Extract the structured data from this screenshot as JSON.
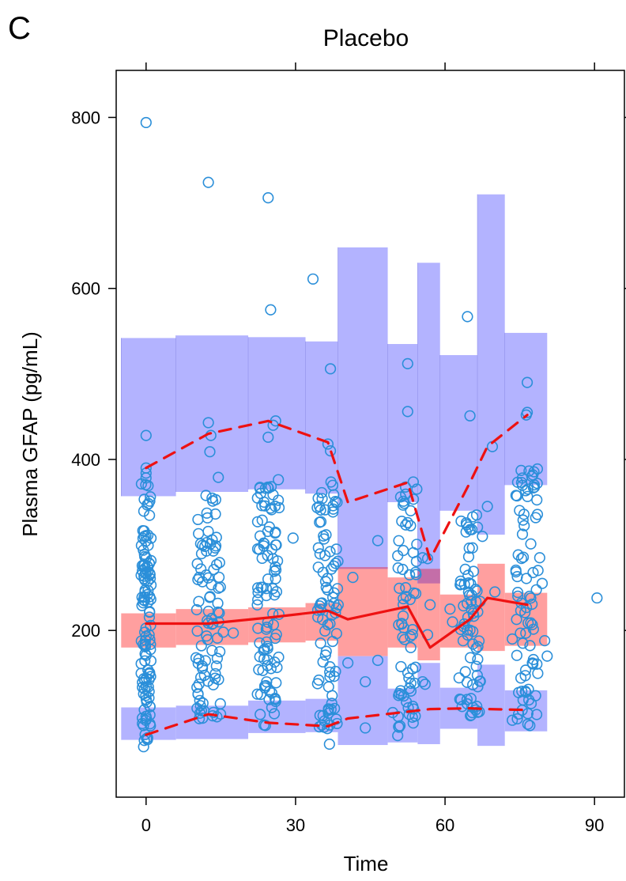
{
  "panel_label": "C",
  "colors": {
    "outer_band": "#b3b3ff",
    "median_band": "#ff9f9f",
    "overlap": "#c46ea8",
    "points": "#2b8fd9",
    "obs_lines": "#ee1111",
    "axis": "#000000"
  },
  "chart_data": {
    "type": "scatter",
    "title": "Placebo",
    "xlabel": "Time",
    "ylabel": "Plasma GFAP (pg/mL)",
    "xlim": [
      -6,
      96
    ],
    "ylim": [
      5,
      855
    ],
    "x_ticks": [
      0,
      30,
      60,
      90
    ],
    "x_tick_labels": [
      "0",
      "30",
      "60",
      "90"
    ],
    "y_ticks": [
      200,
      400,
      600,
      800
    ],
    "y_tick_labels": [
      "200",
      "400",
      "600",
      "800"
    ],
    "grid": false,
    "legend": "none",
    "bins": [
      {
        "x0": -5,
        "x1": 6,
        "hi_lo": 357,
        "hi_hi": 542,
        "med_lo": 180,
        "med_hi": 220,
        "lo_lo": 72,
        "lo_hi": 110
      },
      {
        "x0": 6,
        "x1": 20.5,
        "hi_lo": 362,
        "hi_hi": 545,
        "med_lo": 183,
        "med_hi": 225,
        "lo_lo": 73,
        "lo_hi": 112
      },
      {
        "x0": 20.5,
        "x1": 32,
        "hi_lo": 365,
        "hi_hi": 543,
        "med_lo": 186,
        "med_hi": 227,
        "lo_lo": 80,
        "lo_hi": 118
      },
      {
        "x0": 32,
        "x1": 38.5,
        "hi_lo": 360,
        "hi_hi": 538,
        "med_lo": 188,
        "med_hi": 232,
        "lo_lo": 81,
        "lo_hi": 120
      },
      {
        "x0": 38.5,
        "x1": 48.5,
        "hi_lo": 272,
        "hi_hi": 648,
        "med_lo": 170,
        "med_hi": 274,
        "lo_lo": 66,
        "lo_hi": 170
      },
      {
        "x0": 48.5,
        "x1": 54.5,
        "hi_lo": 350,
        "hi_hi": 535,
        "med_lo": 180,
        "med_hi": 262,
        "lo_lo": 69,
        "lo_hi": 132
      },
      {
        "x0": 54.5,
        "x1": 59,
        "hi_lo": 255,
        "hi_hi": 630,
        "med_lo": 165,
        "med_hi": 272,
        "lo_lo": 67,
        "lo_hi": 162
      },
      {
        "x0": 59,
        "x1": 66.5,
        "hi_lo": 340,
        "hi_hi": 522,
        "med_lo": 180,
        "med_hi": 242,
        "lo_lo": 85,
        "lo_hi": 133
      },
      {
        "x0": 66.5,
        "x1": 72,
        "hi_lo": 312,
        "hi_hi": 710,
        "med_lo": 176,
        "med_hi": 278,
        "lo_lo": 65,
        "lo_hi": 160
      },
      {
        "x0": 72,
        "x1": 80.5,
        "hi_lo": 370,
        "hi_hi": 548,
        "med_lo": 182,
        "med_hi": 244,
        "lo_lo": 82,
        "lo_hi": 130
      }
    ],
    "series": [
      {
        "style": "solid",
        "x": [
          0,
          12.5,
          24.5,
          36.5,
          40.5,
          52.5,
          57,
          65,
          68.5,
          76.5
        ],
        "values": [
          208,
          208,
          215,
          223,
          213,
          228,
          180,
          213,
          238,
          230
        ]
      },
      {
        "style": "dashed",
        "x": [
          0,
          12.5,
          24.5,
          36.5,
          40.5,
          52.5,
          57,
          65,
          68.5,
          76.5
        ],
        "values": [
          390,
          430,
          445,
          420,
          350,
          373,
          283,
          373,
          415,
          452
        ]
      },
      {
        "style": "dashed",
        "x": [
          0,
          12.5,
          24.5,
          36.5,
          40.5,
          52.5,
          57,
          65,
          68.5,
          76.5
        ],
        "values": [
          78,
          102,
          92,
          88,
          97,
          105,
          108,
          109,
          108,
          107
        ]
      }
    ],
    "points": {
      "clusters": [
        {
          "x": 0,
          "spread": 1.0,
          "ymin": 70,
          "ymax": 380,
          "n": 120
        },
        {
          "x": 12.5,
          "spread": 2.5,
          "ymin": 95,
          "ymax": 360,
          "n": 90
        },
        {
          "x": 24.5,
          "spread": 2.2,
          "ymin": 88,
          "ymax": 380,
          "n": 95
        },
        {
          "x": 36.5,
          "spread": 2.2,
          "ymin": 85,
          "ymax": 380,
          "n": 85
        },
        {
          "x": 52.5,
          "spread": 2.0,
          "ymin": 85,
          "ymax": 375,
          "n": 70
        },
        {
          "x": 65,
          "spread": 2.2,
          "ymin": 100,
          "ymax": 345,
          "n": 75
        },
        {
          "x": 76.5,
          "spread": 2.3,
          "ymin": 85,
          "ymax": 400,
          "n": 80
        }
      ],
      "extra": [
        [
          0,
          794
        ],
        [
          12.5,
          724
        ],
        [
          24.5,
          706
        ],
        [
          25,
          575
        ],
        [
          33.5,
          611
        ],
        [
          64.5,
          567
        ],
        [
          37,
          506
        ],
        [
          52.5,
          512
        ],
        [
          52.5,
          456
        ],
        [
          0,
          428
        ],
        [
          12.5,
          443
        ],
        [
          13,
          428
        ],
        [
          24.5,
          426
        ],
        [
          25.5,
          440
        ],
        [
          26,
          445
        ],
        [
          12.8,
          409
        ],
        [
          76.5,
          490
        ],
        [
          76.5,
          455
        ],
        [
          76.3,
          452
        ],
        [
          65,
          451
        ],
        [
          69.5,
          415
        ],
        [
          36.5,
          418
        ],
        [
          37,
          410
        ],
        [
          14.5,
          379
        ],
        [
          0,
          390
        ],
        [
          0,
          384
        ],
        [
          -0.5,
          64
        ],
        [
          36.8,
          67
        ],
        [
          40.5,
          162
        ],
        [
          44,
          140
        ],
        [
          44,
          86
        ],
        [
          46.5,
          305
        ],
        [
          41.5,
          262
        ],
        [
          50.5,
          77
        ],
        [
          55.5,
          285
        ],
        [
          56.5,
          284
        ],
        [
          57,
          230
        ],
        [
          56.5,
          195
        ],
        [
          55.5,
          140
        ],
        [
          56,
          137
        ],
        [
          61,
          225
        ],
        [
          61.5,
          210
        ],
        [
          67.5,
          310
        ],
        [
          68.5,
          345
        ],
        [
          70,
          245
        ],
        [
          73.5,
          190
        ],
        [
          73.5,
          95
        ],
        [
          78.5,
          372
        ],
        [
          79,
          285
        ],
        [
          79.5,
          255
        ],
        [
          80,
          188
        ],
        [
          80.5,
          170
        ],
        [
          90.5,
          238
        ],
        [
          29.5,
          308
        ],
        [
          26,
          300
        ],
        [
          15.5,
          198
        ],
        [
          17.5,
          197
        ],
        [
          46.5,
          165
        ],
        [
          49.5,
          104
        ]
      ]
    }
  }
}
